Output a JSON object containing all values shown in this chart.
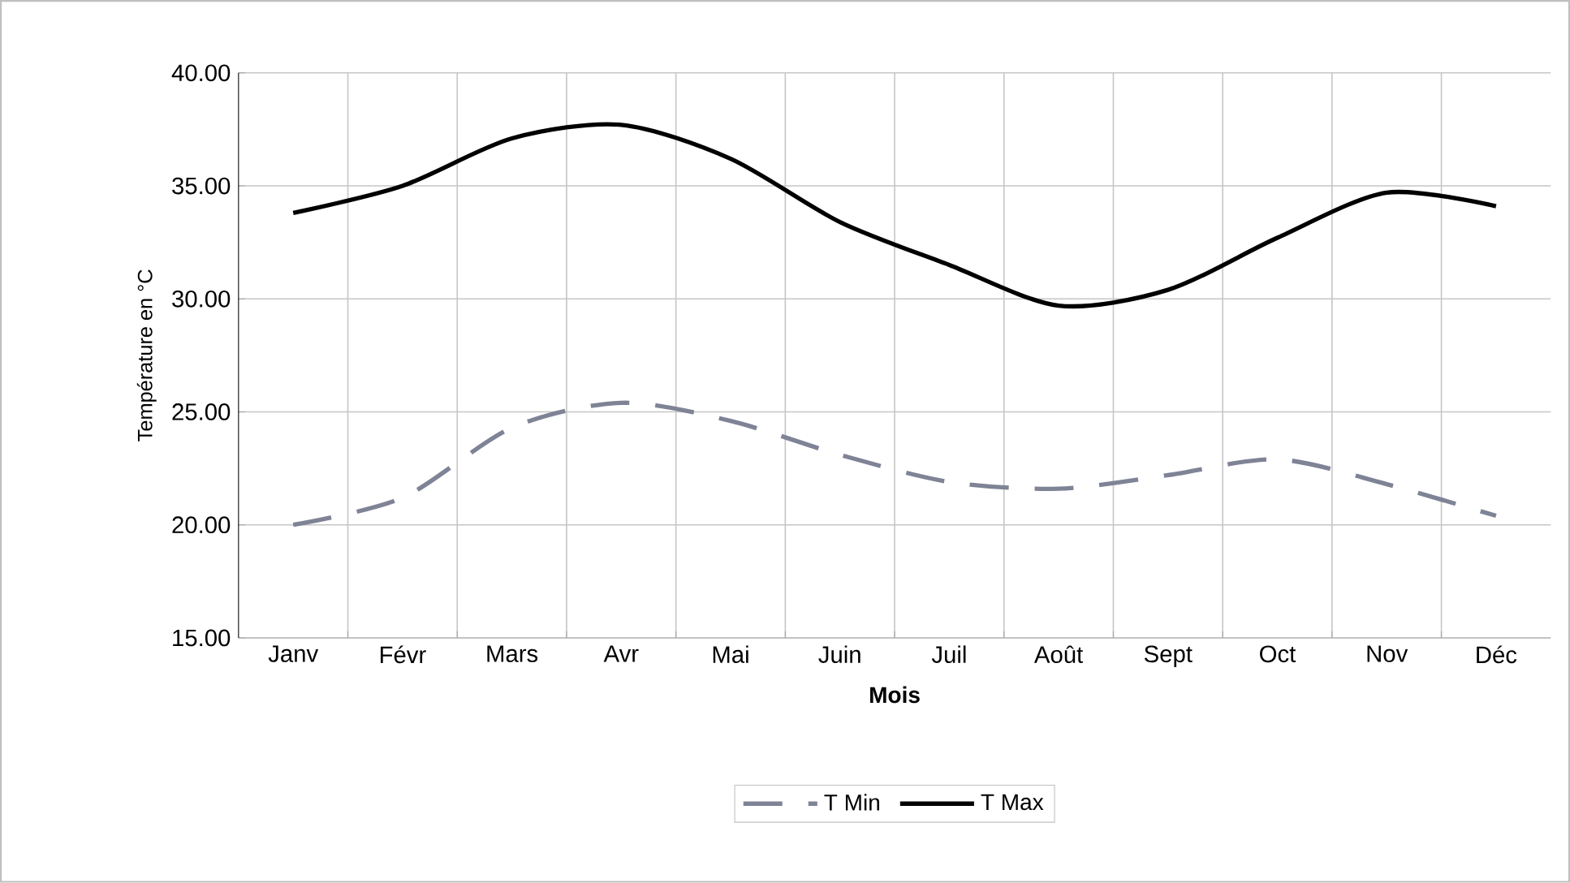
{
  "chart_data": {
    "type": "line",
    "xlabel": "Mois",
    "ylabel": "Température en °C",
    "categories": [
      "Janv",
      "Févr",
      "Mars",
      "Avr",
      "Mai",
      "Juin",
      "Juil",
      "Août",
      "Sept",
      "Oct",
      "Nov",
      "Déc"
    ],
    "series": [
      {
        "name": "T Min",
        "color": "#7f8396",
        "line_style": "dashed",
        "values": [
          20.0,
          21.2,
          24.3,
          25.4,
          24.6,
          23.1,
          21.9,
          21.6,
          22.2,
          22.9,
          21.8,
          20.4
        ]
      },
      {
        "name": "T Max",
        "color": "#000000",
        "line_style": "solid",
        "values": [
          33.8,
          35.0,
          37.1,
          37.7,
          36.2,
          33.4,
          31.5,
          29.7,
          30.4,
          32.7,
          34.7,
          34.1
        ]
      }
    ],
    "ylim": [
      15,
      40
    ],
    "yticks": [
      {
        "value": 15,
        "label": "15.00"
      },
      {
        "value": 20,
        "label": "20.00"
      },
      {
        "value": 25,
        "label": "25.00"
      },
      {
        "value": 30,
        "label": "30.00"
      },
      {
        "value": 35,
        "label": "35.00"
      },
      {
        "value": 40,
        "label": "40.00"
      }
    ],
    "grid": true,
    "legend": "bottom",
    "marker": "none"
  }
}
